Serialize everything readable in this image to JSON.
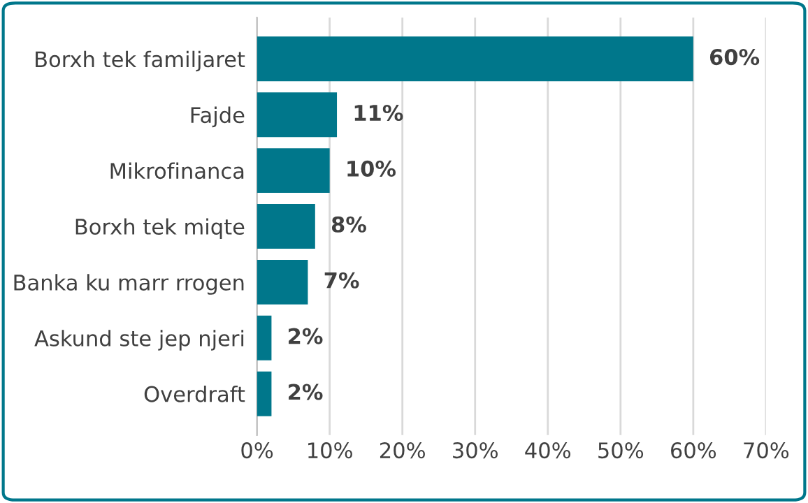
{
  "chart_data": {
    "type": "bar",
    "orientation": "horizontal",
    "categories": [
      "Borxh tek familjaret",
      "Fajde",
      "Mikrofinanca",
      "Borxh tek miqte",
      "Banka ku marr rrogen",
      "Askund ste jep njeri",
      "Overdraft"
    ],
    "values": [
      60,
      11,
      10,
      8,
      7,
      2,
      2
    ],
    "value_labels": [
      "60%",
      "11%",
      "10%",
      "8%",
      "7%",
      "2%",
      "2%"
    ],
    "color": "#00778b",
    "xlim": [
      0,
      70
    ],
    "xticks": [
      {
        "value": 0,
        "label": "0%"
      },
      {
        "value": 10,
        "label": "10%"
      },
      {
        "value": 20,
        "label": "20%"
      },
      {
        "value": 30,
        "label": "30%"
      },
      {
        "value": 40,
        "label": "40%"
      },
      {
        "value": 50,
        "label": "50%"
      },
      {
        "value": 60,
        "label": "60%"
      },
      {
        "value": 70,
        "label": "70%"
      }
    ],
    "grid": "x"
  }
}
